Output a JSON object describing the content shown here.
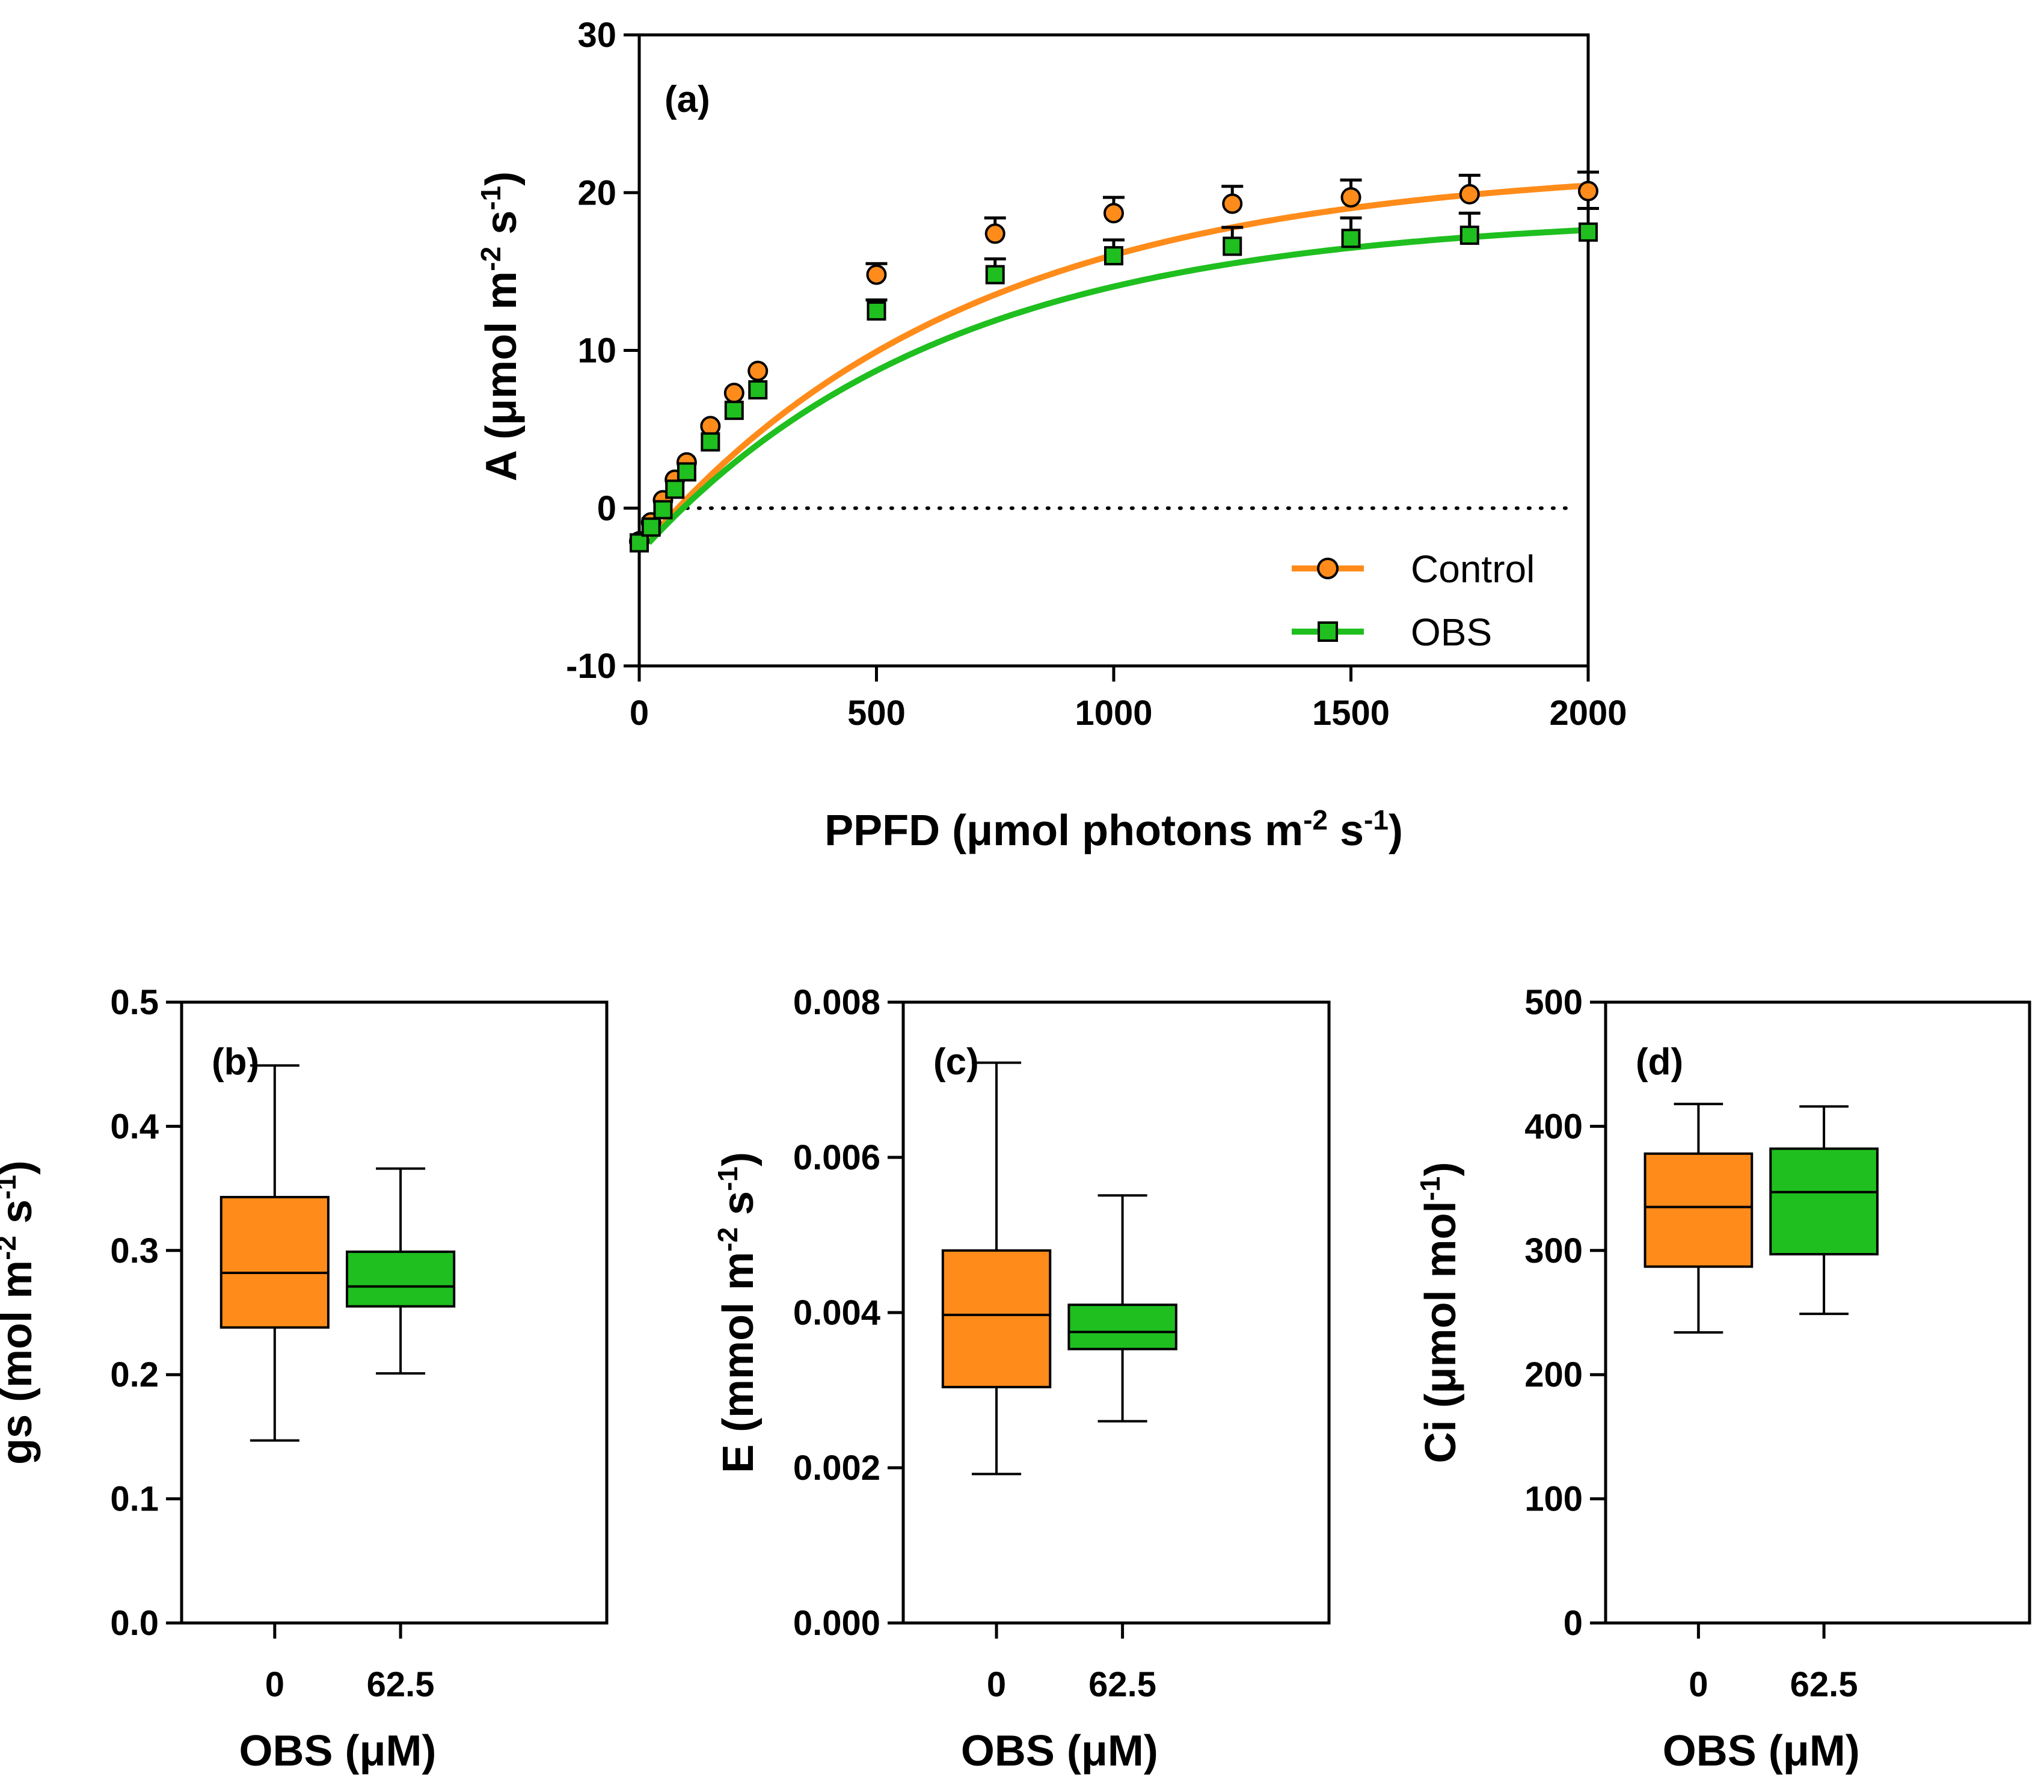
{
  "colors": {
    "control": "#FF8C1A",
    "obs": "#1FBF1F",
    "axis": "#000000"
  },
  "chart_data": [
    {
      "id": "a",
      "type": "line",
      "panel_label": "(a)",
      "xlabel": {
        "main": "PPFD (",
        "mu": "μ",
        "rest": "mol photons m",
        "sup1": "-2",
        "mid": " s",
        "sup2": "-1",
        "end": ")"
      },
      "ylabel": {
        "main": "A (",
        "mu": "μ",
        "rest": "mol m",
        "sup1": "-2",
        "mid": " s",
        "sup2": "-1",
        "end": ")"
      },
      "xlim": [
        0,
        2000
      ],
      "ylim": [
        -10,
        30
      ],
      "xticks": [
        "0",
        "500",
        "1000",
        "1500",
        "2000"
      ],
      "yticks": [
        "-10",
        "0",
        "10",
        "20",
        "30"
      ],
      "zero_line": 0,
      "legend_position": "bottom-right",
      "x": [
        0,
        25,
        50,
        75,
        100,
        150,
        200,
        250,
        500,
        750,
        1000,
        1250,
        1500,
        1750,
        2000
      ],
      "series": [
        {
          "name": "Control",
          "marker": "circle",
          "values": [
            -2.1,
            -0.9,
            0.5,
            1.8,
            2.9,
            5.2,
            7.3,
            8.7,
            14.8,
            17.4,
            18.7,
            19.3,
            19.7,
            19.9,
            20.1
          ],
          "err": [
            0,
            0,
            0,
            0,
            0,
            0,
            0,
            0,
            0.7,
            1.0,
            1.0,
            1.1,
            1.1,
            1.2,
            1.2
          ],
          "fit": {
            "amax": 24.0,
            "k": 0.00145,
            "rd": -2.2,
            "x0": 15
          }
        },
        {
          "name": "OBS",
          "marker": "square",
          "values": [
            -2.2,
            -1.2,
            -0.1,
            1.2,
            2.3,
            4.2,
            6.2,
            7.5,
            12.5,
            14.8,
            16.0,
            16.6,
            17.1,
            17.3,
            17.5
          ],
          "err": [
            0,
            0,
            0,
            0,
            0,
            0,
            0,
            0,
            0.7,
            1.0,
            1.0,
            1.2,
            1.3,
            1.4,
            1.5
          ],
          "fit": {
            "amax": 20.8,
            "k": 0.00155,
            "rd": -2.2,
            "x0": 20
          }
        }
      ]
    },
    {
      "id": "b",
      "type": "box",
      "panel_label": "(b)",
      "ylabel": {
        "main": "gs (mol m",
        "sup1": "-2",
        "mid": " s",
        "sup2": "-1",
        "end": ")"
      },
      "xlabel": {
        "main": "OBS (",
        "mu": "μ",
        "rest": "M)"
      },
      "ylim": [
        0,
        0.5
      ],
      "yticks": [
        "0.0",
        "0.1",
        "0.2",
        "0.3",
        "0.4",
        "0.5"
      ],
      "categories": [
        "0",
        "62.5"
      ],
      "boxes": [
        {
          "min": 0.147,
          "q1": 0.238,
          "median": 0.282,
          "q3": 0.343,
          "max": 0.449
        },
        {
          "min": 0.201,
          "q1": 0.255,
          "median": 0.271,
          "q3": 0.299,
          "max": 0.366
        }
      ]
    },
    {
      "id": "c",
      "type": "box",
      "panel_label": "(c)",
      "ylabel": {
        "main": "E (mmol m",
        "sup1": "-2",
        "mid": " s",
        "sup2": "-1",
        "end": ")"
      },
      "xlabel": {
        "main": "OBS (",
        "mu": "μ",
        "rest": "M)"
      },
      "ylim": [
        0,
        0.008
      ],
      "yticks": [
        "0.000",
        "0.002",
        "0.004",
        "0.006",
        "0.008"
      ],
      "categories": [
        "0",
        "62.5"
      ],
      "boxes": [
        {
          "min": 0.00192,
          "q1": 0.00304,
          "median": 0.00397,
          "q3": 0.0048,
          "max": 0.00722
        },
        {
          "min": 0.0026,
          "q1": 0.00353,
          "median": 0.00375,
          "q3": 0.0041,
          "max": 0.00551
        }
      ]
    },
    {
      "id": "d",
      "type": "box",
      "panel_label": "(d)",
      "ylabel": {
        "main": "Ci (",
        "mu": "μ",
        "rest": "mol mol",
        "sup1": "-1",
        "end": ")"
      },
      "xlabel": {
        "main": "OBS (",
        "mu": "μ",
        "rest": "M)"
      },
      "ylim": [
        0,
        500
      ],
      "yticks": [
        "0",
        "100",
        "200",
        "300",
        "400",
        "500"
      ],
      "categories": [
        "0",
        "62.5"
      ],
      "boxes": [
        {
          "min": 234,
          "q1": 287,
          "median": 335,
          "q3": 378,
          "max": 418
        },
        {
          "min": 249,
          "q1": 297,
          "median": 347,
          "q3": 382,
          "max": 416
        }
      ]
    }
  ]
}
